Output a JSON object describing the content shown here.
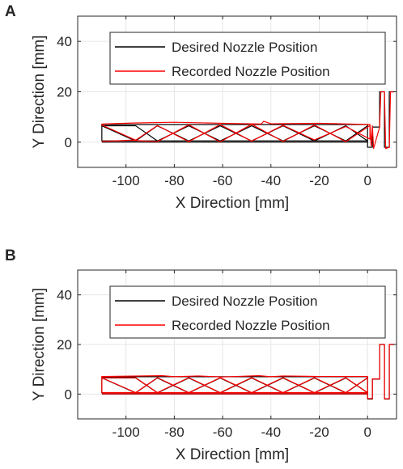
{
  "panels": [
    {
      "label": "A"
    },
    {
      "label": "B"
    }
  ],
  "chart_data": [
    {
      "type": "line",
      "panel": "A",
      "xlabel": "X Direction [mm]",
      "ylabel": "Y Direction [mm]",
      "xlim": [
        -120,
        12
      ],
      "ylim": [
        -10,
        50
      ],
      "xticks": [
        -100,
        -80,
        -60,
        -40,
        -20,
        0
      ],
      "yticks": [
        0,
        20,
        40
      ],
      "grid": true,
      "legend_position": "top-right",
      "series": [
        {
          "name": "Desired Nozzle Position",
          "color": "#000000",
          "x": [
            -110,
            0,
            0,
            -110,
            -110,
            -96,
            -87,
            -74,
            -61,
            -48,
            -35,
            -22,
            -9,
            0,
            0,
            -9,
            -22,
            -35,
            -48,
            -61,
            -74,
            -87,
            -96,
            -110,
            -110,
            0,
            0,
            2,
            2,
            5,
            5,
            7,
            7,
            9,
            9,
            11
          ],
          "y": [
            0,
            0,
            0.5,
            0.5,
            6.5,
            6.5,
            0.5,
            6.5,
            0.5,
            6.5,
            0.5,
            6.5,
            0.5,
            6.5,
            0.5,
            6.5,
            0.5,
            6.5,
            0.5,
            6.5,
            0.5,
            6.5,
            0.5,
            6.5,
            7,
            7,
            -2,
            -2,
            6,
            6,
            20,
            20,
            -2,
            -2,
            20,
            20
          ]
        },
        {
          "name": "Recorded Nozzle Position",
          "color": "#ff0000",
          "x": [
            -110,
            -98,
            -87,
            -74,
            -61,
            -48,
            -35,
            -22,
            -9,
            1,
            1,
            -9,
            -22,
            -35,
            -48,
            -61,
            -74,
            -87,
            -96,
            -110,
            -110,
            -97,
            -80,
            -60,
            -44,
            -43,
            -40,
            -20,
            1,
            1.5,
            2,
            2.5,
            5,
            5.5,
            7,
            7.5,
            9,
            9.5,
            11
          ],
          "y": [
            0.3,
            0.8,
            0.2,
            6.9,
            0.1,
            7.1,
            0.3,
            6.8,
            0.2,
            6.6,
            1.2,
            6.2,
            0.9,
            6.7,
            0.4,
            7.0,
            0.2,
            6.6,
            0.8,
            6.8,
            7.2,
            7.6,
            7.9,
            7.5,
            7.2,
            8.3,
            7.3,
            7.5,
            7.0,
            -1.5,
            6.5,
            -2.5,
            6.0,
            20,
            20,
            -2.5,
            -2,
            20,
            20
          ]
        }
      ]
    },
    {
      "type": "line",
      "panel": "B",
      "xlabel": "X Direction [mm]",
      "ylabel": "Y Direction [mm]",
      "xlim": [
        -120,
        12
      ],
      "ylim": [
        -10,
        50
      ],
      "xticks": [
        -100,
        -80,
        -60,
        -40,
        -20,
        0
      ],
      "yticks": [
        0,
        20,
        40
      ],
      "grid": true,
      "legend_position": "top-right",
      "series": [
        {
          "name": "Desired Nozzle Position",
          "color": "#000000",
          "x": [
            -110,
            0,
            0,
            -110,
            -110,
            -96,
            -87,
            -74,
            -61,
            -48,
            -35,
            -22,
            -9,
            0,
            0,
            -9,
            -22,
            -35,
            -48,
            -61,
            -74,
            -87,
            -96,
            -110,
            -110,
            0,
            0,
            2,
            2,
            5,
            5,
            7,
            7,
            9,
            9,
            11
          ],
          "y": [
            0,
            0,
            0.5,
            0.5,
            6.5,
            6.5,
            0.5,
            6.5,
            0.5,
            6.5,
            0.5,
            6.5,
            0.5,
            6.5,
            0.5,
            6.5,
            0.5,
            6.5,
            0.5,
            6.5,
            0.5,
            6.5,
            0.5,
            6.5,
            7,
            7,
            -2,
            -2,
            6,
            6,
            20,
            20,
            -2,
            -2,
            20,
            20
          ]
        },
        {
          "name": "Recorded Nozzle Position",
          "color": "#ff0000",
          "x": [
            -110,
            0,
            0,
            -110,
            -110,
            -96,
            -87,
            -74,
            -61,
            -48,
            -35,
            -22,
            -9,
            0,
            0,
            -9,
            -22,
            -35,
            -48,
            -61,
            -74,
            -87,
            -96,
            -110,
            -110,
            -85,
            -80,
            -70,
            -60,
            -45,
            -40,
            -35,
            -20,
            0,
            0,
            2,
            2,
            5,
            5,
            7,
            7,
            9,
            9,
            11
          ],
          "y": [
            0.1,
            0.1,
            0.6,
            0.6,
            6.6,
            6.6,
            0.6,
            6.6,
            0.6,
            6.6,
            0.6,
            6.6,
            0.6,
            6.6,
            0.6,
            6.6,
            0.6,
            6.6,
            0.6,
            6.6,
            0.6,
            6.6,
            0.6,
            6.6,
            7.1,
            7.4,
            7.0,
            7.3,
            6.9,
            7.4,
            7.0,
            7.3,
            7.1,
            7.1,
            -1.8,
            -1.8,
            6.1,
            6.1,
            20,
            20,
            -1.9,
            -1.9,
            20,
            20
          ]
        }
      ]
    }
  ]
}
